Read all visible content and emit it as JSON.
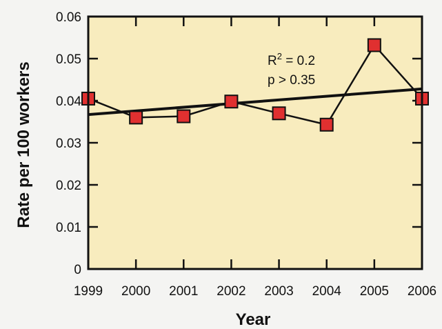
{
  "chart_data": {
    "type": "line",
    "title": "",
    "xlabel": "Year",
    "ylabel": "Rate per 100 workers",
    "x": [
      "1999",
      "2000",
      "2001",
      "2002",
      "2003",
      "2004",
      "2005",
      "2006"
    ],
    "series": [
      {
        "values": [
          0.0405,
          0.036,
          0.0363,
          0.0398,
          0.037,
          0.0343,
          0.0532,
          0.0405
        ],
        "marker": "square",
        "marker_color": "#e03030",
        "line_color": "#111111"
      }
    ],
    "trendline": {
      "start": [
        1999,
        0.0367
      ],
      "end": [
        2006,
        0.0428
      ],
      "color": "#111111"
    },
    "annotations": {
      "r2_base": "R",
      "r2_sup": "2",
      "r2_rest": " = 0.2",
      "p_value": "p > 0.35"
    },
    "yticks": [
      "0",
      "0.01",
      "0.02",
      "0.03",
      "0.04",
      "0.05",
      "0.06"
    ],
    "ylim": [
      0,
      0.06
    ],
    "xlim": [
      1999,
      2006
    ],
    "grid": false,
    "legend": false,
    "colors": {
      "plot_background": "#f8ecbe",
      "page_background": "#f4f4f2"
    }
  }
}
